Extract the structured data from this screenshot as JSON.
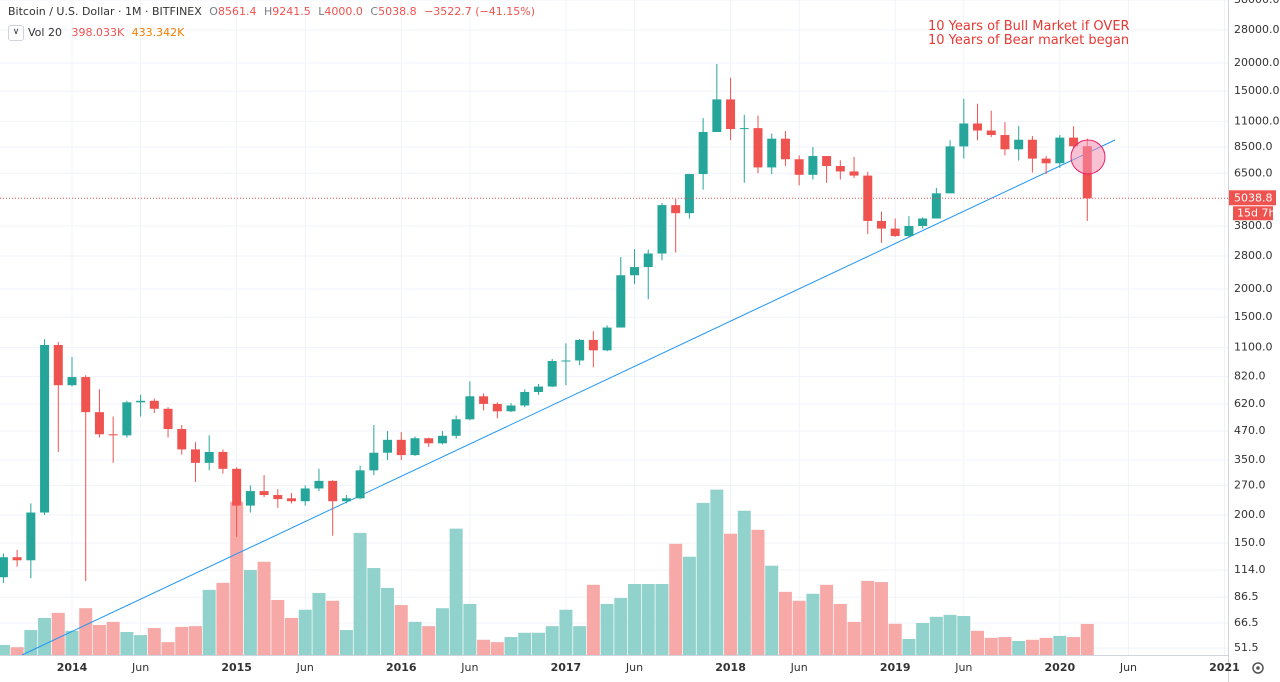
{
  "chart_data": {
    "type": "candlestick",
    "symbol": "Bitcoin / U.S. Dollar · 1M · BITFINEX",
    "last_bar_labels": {
      "open": "8561.4",
      "high": "9241.5",
      "low": "4000.0",
      "close": "5038.8",
      "change": "−3522.7 (−41.15%)"
    },
    "volume_name": "Vol 20",
    "volume_labels": {
      "last": "398.033K",
      "ma": "433.342K"
    },
    "countdown": "15d 7h",
    "annotations": [
      "10 Years of Bull Market if OVER",
      "10 Years of Bear market began"
    ],
    "x": [
      "2013-08",
      "2013-09",
      "2013-10",
      "2013-11",
      "2013-12",
      "2014-01",
      "2014-02",
      "2014-03",
      "2014-04",
      "2014-05",
      "2014-06",
      "2014-07",
      "2014-08",
      "2014-09",
      "2014-10",
      "2014-11",
      "2014-12",
      "2015-01",
      "2015-02",
      "2015-03",
      "2015-04",
      "2015-05",
      "2015-06",
      "2015-07",
      "2015-08",
      "2015-09",
      "2015-10",
      "2015-11",
      "2015-12",
      "2016-01",
      "2016-02",
      "2016-03",
      "2016-04",
      "2016-05",
      "2016-06",
      "2016-07",
      "2016-08",
      "2016-09",
      "2016-10",
      "2016-11",
      "2016-12",
      "2017-01",
      "2017-02",
      "2017-03",
      "2017-04",
      "2017-05",
      "2017-06",
      "2017-07",
      "2017-08",
      "2017-09",
      "2017-10",
      "2017-11",
      "2017-12",
      "2018-01",
      "2018-02",
      "2018-03",
      "2018-04",
      "2018-05",
      "2018-06",
      "2018-07",
      "2018-08",
      "2018-09",
      "2018-10",
      "2018-11",
      "2018-12",
      "2019-01",
      "2019-02",
      "2019-03",
      "2019-04",
      "2019-05",
      "2019-06",
      "2019-07",
      "2019-08",
      "2019-09",
      "2019-10",
      "2019-11",
      "2019-12",
      "2020-01",
      "2020-02",
      "2020-03"
    ],
    "open": [
      106,
      130,
      126,
      205,
      1130,
      750,
      815,
      570,
      455,
      450,
      630,
      640,
      590,
      480,
      390,
      340,
      380,
      320,
      220,
      255,
      245,
      237,
      230,
      262,
      283,
      230,
      237,
      315,
      377,
      430,
      368,
      437,
      415,
      448,
      530,
      670,
      620,
      575,
      610,
      700,
      740,
      960,
      965,
      1190,
      1070,
      1350,
      2300,
      2500,
      2870,
      4700,
      4330,
      6450,
      9900,
      13800,
      10200,
      10300,
      6900,
      9250,
      7500,
      6400,
      7750,
      7000,
      6625,
      6350,
      4000,
      3700,
      3430,
      3800,
      4100,
      5300,
      8550,
      10800,
      10050,
      9600,
      8300,
      9150,
      7550,
      7200,
      9350,
      8561.4
    ],
    "high": [
      135,
      140,
      225,
      1200,
      1165,
      1000,
      830,
      720,
      545,
      640,
      680,
      655,
      600,
      500,
      420,
      450,
      390,
      325,
      270,
      300,
      260,
      250,
      270,
      320,
      285,
      245,
      330,
      500,
      470,
      465,
      445,
      440,
      470,
      550,
      780,
      690,
      630,
      625,
      720,
      760,
      980,
      1150,
      1200,
      1300,
      1380,
      2770,
      3000,
      2990,
      4800,
      5000,
      6470,
      11400,
      19800,
      17200,
      11800,
      11700,
      9750,
      9990,
      7800,
      8500,
      7750,
      7420,
      7680,
      6600,
      4400,
      4100,
      4200,
      4150,
      5600,
      9100,
      13880,
      13200,
      12300,
      10950,
      10540,
      9500,
      7750,
      9600,
      10500,
      9241.5
    ],
    "low": [
      100,
      118,
      105,
      200,
      380,
      740,
      102,
      440,
      340,
      440,
      545,
      565,
      440,
      370,
      280,
      315,
      305,
      160,
      205,
      240,
      215,
      225,
      220,
      255,
      162,
      225,
      235,
      300,
      350,
      350,
      365,
      400,
      410,
      435,
      525,
      580,
      535,
      570,
      600,
      680,
      735,
      750,
      920,
      900,
      1060,
      1350,
      2100,
      1800,
      2680,
      2900,
      4100,
      5500,
      9900,
      9100,
      5900,
      6500,
      6450,
      7000,
      5750,
      6100,
      5900,
      6100,
      6200,
      3500,
      3200,
      3400,
      3370,
      3700,
      4100,
      5300,
      7550,
      9100,
      9400,
      7800,
      7400,
      6550,
      6450,
      6860,
      8400,
      4000
    ],
    "close": [
      130,
      126,
      205,
      1130,
      750,
      815,
      570,
      455,
      450,
      630,
      640,
      590,
      480,
      390,
      340,
      380,
      320,
      220,
      255,
      245,
      235,
      230,
      262,
      283,
      230,
      237,
      315,
      377,
      430,
      368,
      437,
      415,
      448,
      530,
      670,
      620,
      575,
      610,
      700,
      740,
      960,
      965,
      1190,
      1070,
      1350,
      2300,
      2500,
      2870,
      4700,
      4330,
      6450,
      9900,
      13800,
      10200,
      10300,
      6900,
      9250,
      7500,
      6400,
      7750,
      7000,
      6625,
      6350,
      4000,
      3700,
      3430,
      3800,
      4100,
      5300,
      8550,
      10800,
      10050,
      9600,
      8300,
      9150,
      7550,
      7200,
      9350,
      8561.4,
      5038.8
    ],
    "volume": [
      128,
      100,
      320,
      475,
      540,
      310,
      600,
      385,
      425,
      295,
      255,
      345,
      165,
      360,
      370,
      835,
      925,
      1965,
      1090,
      1195,
      705,
      475,
      580,
      795,
      695,
      320,
      1565,
      1115,
      860,
      640,
      425,
      370,
      600,
      1620,
      655,
      195,
      165,
      230,
      285,
      285,
      370,
      580,
      370,
      900,
      655,
      730,
      910,
      910,
      910,
      1425,
      1260,
      1950,
      2120,
      1555,
      1850,
      1605,
      1145,
      810,
      695,
      785,
      900,
      655,
      425,
      950,
      935,
      400,
      205,
      410,
      490,
      515,
      500,
      310,
      220,
      230,
      180,
      195,
      220,
      245,
      230,
      398.033
    ],
    "volume_lim": [
      0,
      3000
    ],
    "up_color": "#26a69a",
    "down_color": "#ef5350",
    "volume_up_color": "#92d2cc",
    "volume_down_color": "#f7a9a7",
    "log_scale": true,
    "grid": true,
    "ylim": [
      48,
      38000
    ],
    "yticks": [
      {
        "value": 38000,
        "label": "38000.0"
      },
      {
        "value": 28000,
        "label": "28000.0"
      },
      {
        "value": 20000,
        "label": "20000.0"
      },
      {
        "value": 15000,
        "label": "15000.0"
      },
      {
        "value": 11000,
        "label": "11000.0"
      },
      {
        "value": 8500,
        "label": "8500.0"
      },
      {
        "value": 6500,
        "label": "6500.0"
      },
      {
        "value": 3800,
        "label": "3800.0"
      },
      {
        "value": 2800,
        "label": "2800.0"
      },
      {
        "value": 2000,
        "label": "2000.0"
      },
      {
        "value": 1500,
        "label": "1500.0"
      },
      {
        "value": 1100,
        "label": "1100.0"
      },
      {
        "value": 820,
        "label": "820.0"
      },
      {
        "value": 620,
        "label": "620.0"
      },
      {
        "value": 470,
        "label": "470.0"
      },
      {
        "value": 350,
        "label": "350.0"
      },
      {
        "value": 270,
        "label": "270.0"
      },
      {
        "value": 200,
        "label": "200.0"
      },
      {
        "value": 150,
        "label": "150.0"
      },
      {
        "value": 114,
        "label": "114.0"
      },
      86.5,
      66.5,
      51.5
    ],
    "xticks": [
      {
        "value": "2014-01",
        "label": "2014"
      },
      {
        "value": "2014-06",
        "label": "Jun"
      },
      {
        "value": "2015-01",
        "label": "2015"
      },
      {
        "value": "2015-06",
        "label": "Jun"
      },
      {
        "value": "2016-01",
        "label": "2016"
      },
      {
        "value": "2016-06",
        "label": "Jun"
      },
      {
        "value": "2017-01",
        "label": "2017"
      },
      {
        "value": "2017-06",
        "label": "Jun"
      },
      {
        "value": "2018-01",
        "label": "2018"
      },
      {
        "value": "2018-06",
        "label": "Jun"
      },
      {
        "value": "2019-01",
        "label": "2019"
      },
      {
        "value": "2019-06",
        "label": "Jun"
      },
      {
        "value": "2020-01",
        "label": "2020"
      },
      {
        "value": "2020-06",
        "label": "Jun"
      },
      {
        "value": "2021-01",
        "label": "2021"
      }
    ]
  }
}
